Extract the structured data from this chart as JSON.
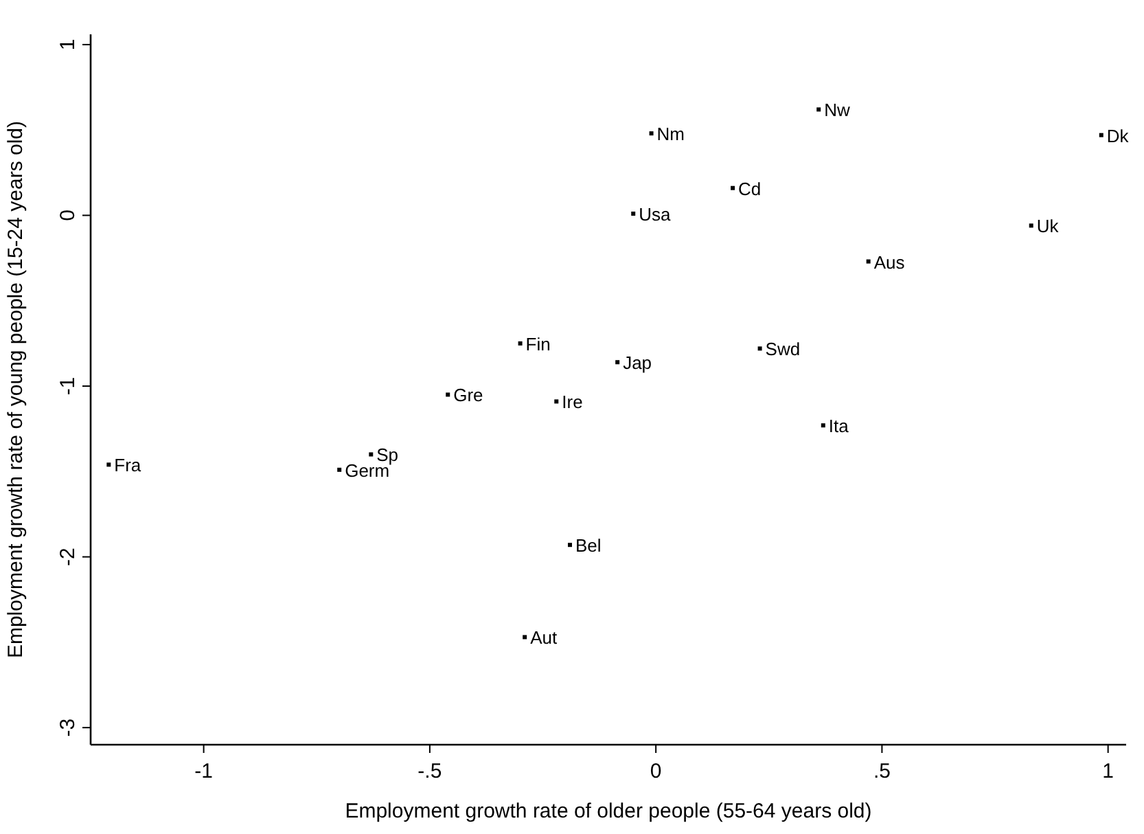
{
  "chart_data": {
    "type": "scatter",
    "xlabel": "Employment growth rate of older people (55-64 years old)",
    "ylabel": "Employment growth rate of young people (15-24 years old)",
    "x": [
      0.985,
      0.36,
      -0.01,
      0.17,
      -0.05,
      0.83,
      0.47,
      0.23,
      -0.085,
      0.37,
      -0.3,
      -0.46,
      -0.22,
      -1.21,
      -0.63,
      -0.7,
      -0.19,
      -0.29
    ],
    "series": [
      {
        "color": "#000000",
        "values": [
          0.47,
          0.62,
          0.48,
          0.16,
          0.01,
          -0.06,
          -0.27,
          -0.78,
          -0.86,
          -1.23,
          -0.75,
          -1.05,
          -1.09,
          -1.46,
          -1.4,
          -1.49,
          -1.93,
          -2.47
        ]
      }
    ],
    "annotations": [
      {
        "text": "Dk",
        "x": 0.985,
        "y": 0.47
      },
      {
        "text": "Nw",
        "x": 0.36,
        "y": 0.62
      },
      {
        "text": "Nm",
        "x": -0.01,
        "y": 0.48
      },
      {
        "text": "Cd",
        "x": 0.17,
        "y": 0.16
      },
      {
        "text": "Usa",
        "x": -0.05,
        "y": 0.01
      },
      {
        "text": "Uk",
        "x": 0.83,
        "y": -0.06
      },
      {
        "text": "Aus",
        "x": 0.47,
        "y": -0.27
      },
      {
        "text": "Swd",
        "x": 0.23,
        "y": -0.78
      },
      {
        "text": "Jap",
        "x": -0.085,
        "y": -0.86
      },
      {
        "text": "Ita",
        "x": 0.37,
        "y": -1.23
      },
      {
        "text": "Fin",
        "x": -0.3,
        "y": -0.75
      },
      {
        "text": "Gre",
        "x": -0.46,
        "y": -1.05
      },
      {
        "text": "Ire",
        "x": -0.22,
        "y": -1.09
      },
      {
        "text": "Fra",
        "x": -1.21,
        "y": -1.46
      },
      {
        "text": "Sp",
        "x": -0.63,
        "y": -1.4
      },
      {
        "text": "Germ",
        "x": -0.7,
        "y": -1.49
      },
      {
        "text": "Bel",
        "x": -0.19,
        "y": -1.93
      },
      {
        "text": "Aut",
        "x": -0.29,
        "y": -2.47
      }
    ],
    "xlim": [
      -1.25,
      1.04
    ],
    "ylim": [
      -3.1,
      1.06
    ],
    "xticks": [
      -1,
      {
        "value": -0.5,
        "label": "-.5"
      },
      0,
      {
        "value": 0.5,
        "label": ".5"
      },
      1
    ],
    "yticks": [
      -3,
      -2,
      -1,
      0,
      1
    ],
    "marker": "square",
    "grid": false
  }
}
